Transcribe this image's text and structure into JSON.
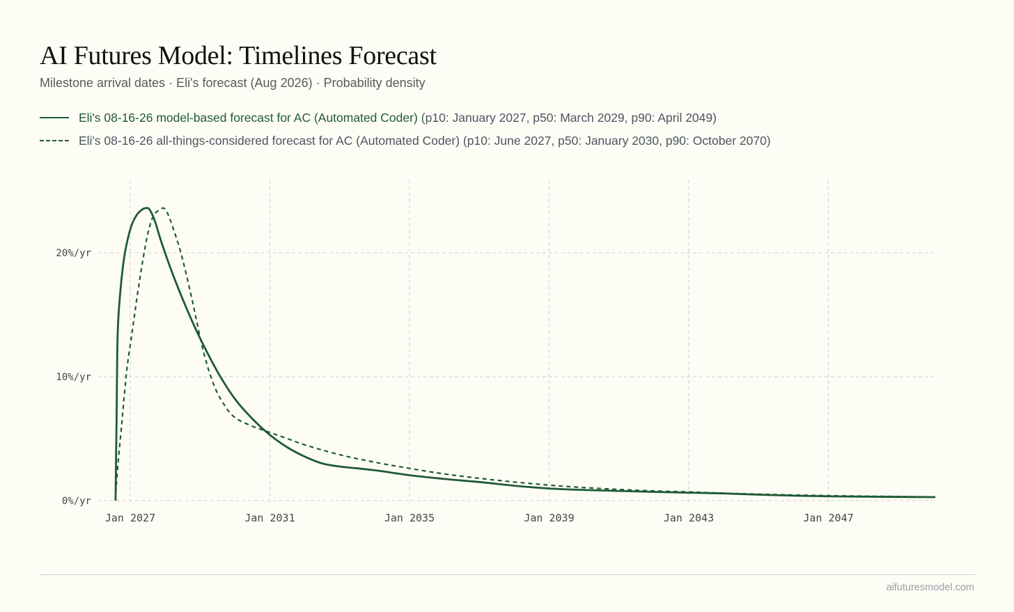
{
  "header": {
    "title": "AI Futures Model: Timelines Forecast",
    "subtitle": "Milestone arrival dates · Eli's forecast (Aug 2026) · Probability density"
  },
  "legend": [
    {
      "main": "Eli's 08-16-26 model-based forecast for AC (Automated Coder)",
      "detail": "(p10: January 2027, p50: March 2029, p90: April 2049)",
      "style": "solid"
    },
    {
      "main": "Eli's 08-16-26 all-things-considered forecast for AC (Automated Coder) (p10: June 2027, p50: January 2030, p90: October 2070)",
      "detail": "",
      "style": "dashed"
    }
  ],
  "footer": {
    "source": "aifuturesmodel.com"
  },
  "colors": {
    "series": "#1f5a34",
    "grid": "#cfcfcf",
    "background": "#fdfdf6",
    "tick_text": "#444444"
  },
  "chart_data": {
    "type": "line",
    "x_unit": "year",
    "y_unit": "%/yr",
    "xlim": [
      2026.8,
      2050.5
    ],
    "ylim": [
      0,
      24
    ],
    "x_ticks": [
      {
        "value": 2027,
        "label": "Jan 2027"
      },
      {
        "value": 2031,
        "label": "Jan 2031"
      },
      {
        "value": 2035,
        "label": "Jan 2035"
      },
      {
        "value": 2039,
        "label": "Jan 2039"
      },
      {
        "value": 2043,
        "label": "Jan 2043"
      },
      {
        "value": 2047,
        "label": "Jan 2047"
      }
    ],
    "y_ticks": [
      {
        "value": 0,
        "label": "0%/yr"
      },
      {
        "value": 10,
        "label": "10%/yr"
      },
      {
        "value": 20,
        "label": "20%/yr"
      }
    ],
    "grid": true,
    "legend_position": "top-left",
    "series": [
      {
        "style": "solid",
        "points": [
          [
            2026.58,
            0
          ],
          [
            2026.61,
            7
          ],
          [
            2026.64,
            13.5
          ],
          [
            2026.72,
            17
          ],
          [
            2026.82,
            19.5
          ],
          [
            2026.92,
            21
          ],
          [
            2027.05,
            22.3
          ],
          [
            2027.2,
            23.1
          ],
          [
            2027.35,
            23.5
          ],
          [
            2027.45,
            23.6
          ],
          [
            2027.55,
            23.5
          ],
          [
            2027.7,
            22.6
          ],
          [
            2027.9,
            20.8
          ],
          [
            2028.2,
            18.4
          ],
          [
            2028.6,
            15.6
          ],
          [
            2029.0,
            13.1
          ],
          [
            2029.5,
            10.4
          ],
          [
            2030.0,
            8.2
          ],
          [
            2030.5,
            6.6
          ],
          [
            2031.0,
            5.3
          ],
          [
            2031.5,
            4.3
          ],
          [
            2032.0,
            3.55
          ],
          [
            2032.5,
            3.0
          ],
          [
            2033.0,
            2.75
          ],
          [
            2034.0,
            2.45
          ],
          [
            2035.0,
            2.05
          ],
          [
            2036.0,
            1.75
          ],
          [
            2037.0,
            1.5
          ],
          [
            2038.0,
            1.2
          ],
          [
            2039.0,
            0.98
          ],
          [
            2040.0,
            0.86
          ],
          [
            2041.0,
            0.78
          ],
          [
            2042.0,
            0.7
          ],
          [
            2043.0,
            0.64
          ],
          [
            2044.0,
            0.58
          ],
          [
            2045.0,
            0.48
          ],
          [
            2046.0,
            0.4
          ],
          [
            2047.0,
            0.35
          ],
          [
            2048.0,
            0.32
          ],
          [
            2049.0,
            0.3
          ],
          [
            2050.0,
            0.28
          ],
          [
            2050.5,
            0.27
          ]
        ]
      },
      {
        "style": "dashed",
        "points": [
          [
            2026.58,
            0
          ],
          [
            2026.62,
            2
          ],
          [
            2026.75,
            6
          ],
          [
            2026.9,
            10.5
          ],
          [
            2027.05,
            13.5
          ],
          [
            2027.2,
            16.5
          ],
          [
            2027.35,
            19.2
          ],
          [
            2027.5,
            21.5
          ],
          [
            2027.65,
            22.9
          ],
          [
            2027.8,
            23.4
          ],
          [
            2027.95,
            23.6
          ],
          [
            2028.05,
            23.3
          ],
          [
            2028.2,
            22.2
          ],
          [
            2028.45,
            20
          ],
          [
            2028.75,
            16.5
          ],
          [
            2029.1,
            12
          ],
          [
            2029.4,
            9.3
          ],
          [
            2029.7,
            7.7
          ],
          [
            2030.0,
            6.7
          ],
          [
            2030.5,
            6.0
          ],
          [
            2031.0,
            5.5
          ],
          [
            2031.5,
            5.0
          ],
          [
            2032.0,
            4.5
          ],
          [
            2033.0,
            3.7
          ],
          [
            2034.0,
            3.1
          ],
          [
            2035.0,
            2.6
          ],
          [
            2036.0,
            2.15
          ],
          [
            2037.0,
            1.8
          ],
          [
            2038.0,
            1.5
          ],
          [
            2039.0,
            1.25
          ],
          [
            2040.0,
            1.05
          ],
          [
            2041.0,
            0.9
          ],
          [
            2042.0,
            0.78
          ],
          [
            2043.0,
            0.7
          ],
          [
            2044.0,
            0.6
          ],
          [
            2045.0,
            0.52
          ],
          [
            2046.0,
            0.45
          ],
          [
            2047.0,
            0.4
          ],
          [
            2048.0,
            0.36
          ],
          [
            2049.0,
            0.33
          ],
          [
            2050.0,
            0.3
          ],
          [
            2050.5,
            0.29
          ]
        ]
      }
    ]
  }
}
